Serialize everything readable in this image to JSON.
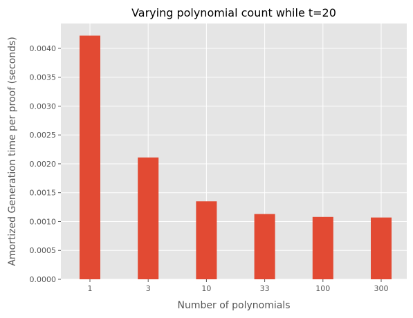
{
  "chart_data": {
    "type": "bar",
    "title": "Varying polynomial count while t=20",
    "xlabel": "Number of polynomials",
    "ylabel": "Amortized Generation time per proof (seconds)",
    "categories": [
      "1",
      "3",
      "10",
      "33",
      "100",
      "300"
    ],
    "values": [
      0.00422,
      0.00211,
      0.00135,
      0.00113,
      0.00108,
      0.00107
    ],
    "ylim": [
      0,
      0.00443
    ],
    "yticks": [
      "0.0000",
      "0.0005",
      "0.0010",
      "0.0015",
      "0.0020",
      "0.0025",
      "0.0030",
      "0.0035",
      "0.0040"
    ],
    "grid": true,
    "style": {
      "bar_color": "#E24A33",
      "plot_background": "#E5E5E5",
      "grid_color": "#FFFFFF"
    }
  }
}
